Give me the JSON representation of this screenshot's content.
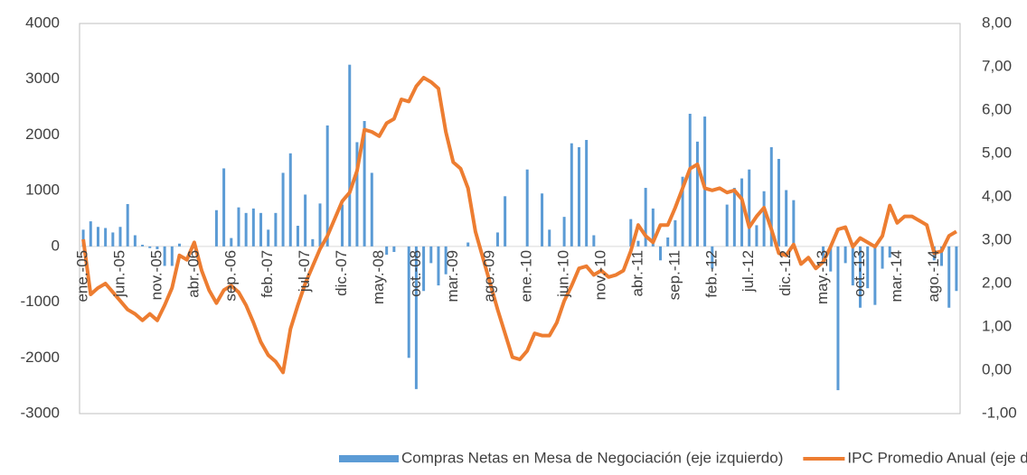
{
  "chart_data": {
    "type": "bar-line",
    "categories": [
      "ene.-05",
      null,
      null,
      null,
      null,
      "jun.-05",
      null,
      null,
      null,
      null,
      "nov.-05",
      null,
      null,
      null,
      null,
      "abr.-06",
      null,
      null,
      null,
      null,
      "sep.-06",
      null,
      null,
      null,
      null,
      "feb.-07",
      null,
      null,
      null,
      null,
      "jul.-07",
      null,
      null,
      null,
      null,
      "dic.-07",
      null,
      null,
      null,
      null,
      "may.-08",
      null,
      null,
      null,
      null,
      "oct.-08",
      null,
      null,
      null,
      null,
      "mar.-09",
      null,
      null,
      null,
      null,
      "ago.-09",
      null,
      null,
      null,
      null,
      "ene.-10",
      null,
      null,
      null,
      null,
      "jun.-10",
      null,
      null,
      null,
      null,
      "nov.-10",
      null,
      null,
      null,
      null,
      "abr.-11",
      null,
      null,
      null,
      null,
      "sep.-11",
      null,
      null,
      null,
      null,
      "feb.-12",
      null,
      null,
      null,
      null,
      "jul.-12",
      null,
      null,
      null,
      null,
      "dic.-12",
      null,
      null,
      null,
      null,
      "may.-13",
      null,
      null,
      null,
      null,
      "oct.-13",
      null,
      null,
      null,
      null,
      "mar.-14",
      null,
      null,
      null,
      null,
      "ago.-14",
      null,
      null,
      null
    ],
    "series": [
      {
        "name": "Compras Netas en Mesa de Negociación (eje izquierdo)",
        "color": "#5b9bd5",
        "kind": "bar",
        "values": [
          300,
          450,
          350,
          330,
          250,
          350,
          760,
          200,
          30,
          -30,
          -50,
          -350,
          -350,
          50,
          0,
          0,
          0,
          0,
          650,
          1400,
          150,
          700,
          600,
          680,
          600,
          300,
          600,
          1320,
          1670,
          370,
          930,
          130,
          770,
          2170,
          0,
          750,
          3260,
          1870,
          2250,
          1320,
          0,
          -150,
          -100,
          0,
          -2000,
          -2560,
          -800,
          -300,
          -700,
          -500,
          0,
          0,
          70,
          0,
          0,
          0,
          250,
          900,
          0,
          0,
          1380,
          0,
          950,
          300,
          0,
          530,
          1850,
          1780,
          1910,
          200,
          0,
          0,
          0,
          0,
          490,
          100,
          1050,
          680,
          -250,
          160,
          470,
          1250,
          2380,
          1880,
          2330,
          -400,
          0,
          750,
          1050,
          1220,
          1380,
          380,
          990,
          1780,
          1570,
          1010,
          830,
          0,
          0,
          0,
          -250,
          -450,
          -2580,
          -300,
          -700,
          -1100,
          -750,
          -1050,
          -400,
          -200,
          0,
          0,
          0,
          0,
          0,
          -250,
          -350,
          -1100,
          -800
        ]
      },
      {
        "name": "IPC Promedio Anual (eje derecho)",
        "color": "#ed7d31",
        "kind": "line",
        "axis": "y2",
        "values": [
          3.02,
          1.75,
          1.9,
          2.0,
          1.8,
          1.6,
          1.4,
          1.3,
          1.15,
          1.3,
          1.15,
          1.5,
          1.9,
          2.65,
          2.55,
          2.95,
          2.3,
          1.85,
          1.55,
          1.85,
          1.95,
          1.8,
          1.5,
          1.1,
          0.65,
          0.35,
          0.2,
          -0.05,
          0.95,
          1.5,
          2.0,
          2.4,
          2.8,
          3.1,
          3.5,
          3.9,
          4.1,
          4.6,
          5.55,
          5.5,
          5.4,
          5.7,
          5.8,
          6.25,
          6.2,
          6.55,
          6.75,
          6.65,
          6.5,
          5.5,
          4.8,
          4.65,
          4.2,
          3.2,
          2.6,
          2.0,
          1.4,
          0.85,
          0.3,
          0.25,
          0.45,
          0.85,
          0.8,
          0.8,
          1.1,
          1.6,
          1.95,
          2.35,
          2.4,
          2.2,
          2.3,
          2.15,
          2.2,
          2.3,
          2.75,
          3.35,
          3.1,
          2.95,
          3.35,
          3.35,
          3.75,
          4.2,
          4.65,
          4.75,
          4.2,
          4.15,
          4.2,
          4.1,
          4.15,
          3.95,
          3.3,
          3.55,
          3.75,
          3.25,
          2.7,
          2.65,
          2.9,
          2.45,
          2.6,
          2.35,
          2.5,
          2.85,
          3.25,
          3.3,
          2.85,
          3.05,
          2.95,
          2.85,
          3.1,
          3.8,
          3.4,
          3.55,
          3.55,
          3.45,
          3.35,
          2.7,
          2.75,
          3.1,
          3.2
        ]
      }
    ],
    "ylim": [
      -3000,
      4000
    ],
    "yticks": [
      -3000,
      -2000,
      -1000,
      0,
      1000,
      2000,
      3000,
      4000
    ],
    "y2lim": [
      -1,
      8
    ],
    "y2ticks": [
      {
        "value": -1,
        "label": "-1,00"
      },
      {
        "value": 0,
        "label": "0,00"
      },
      {
        "value": 1,
        "label": "1,00"
      },
      {
        "value": 2,
        "label": "2,00"
      },
      {
        "value": 3,
        "label": "3,00"
      },
      {
        "value": 4,
        "label": "4,00"
      },
      {
        "value": 5,
        "label": "5,00"
      },
      {
        "value": 6,
        "label": "6,00"
      },
      {
        "value": 7,
        "label": "7,00"
      },
      {
        "value": 8,
        "label": "8,00"
      }
    ],
    "grid": false,
    "legend": "bottom"
  }
}
